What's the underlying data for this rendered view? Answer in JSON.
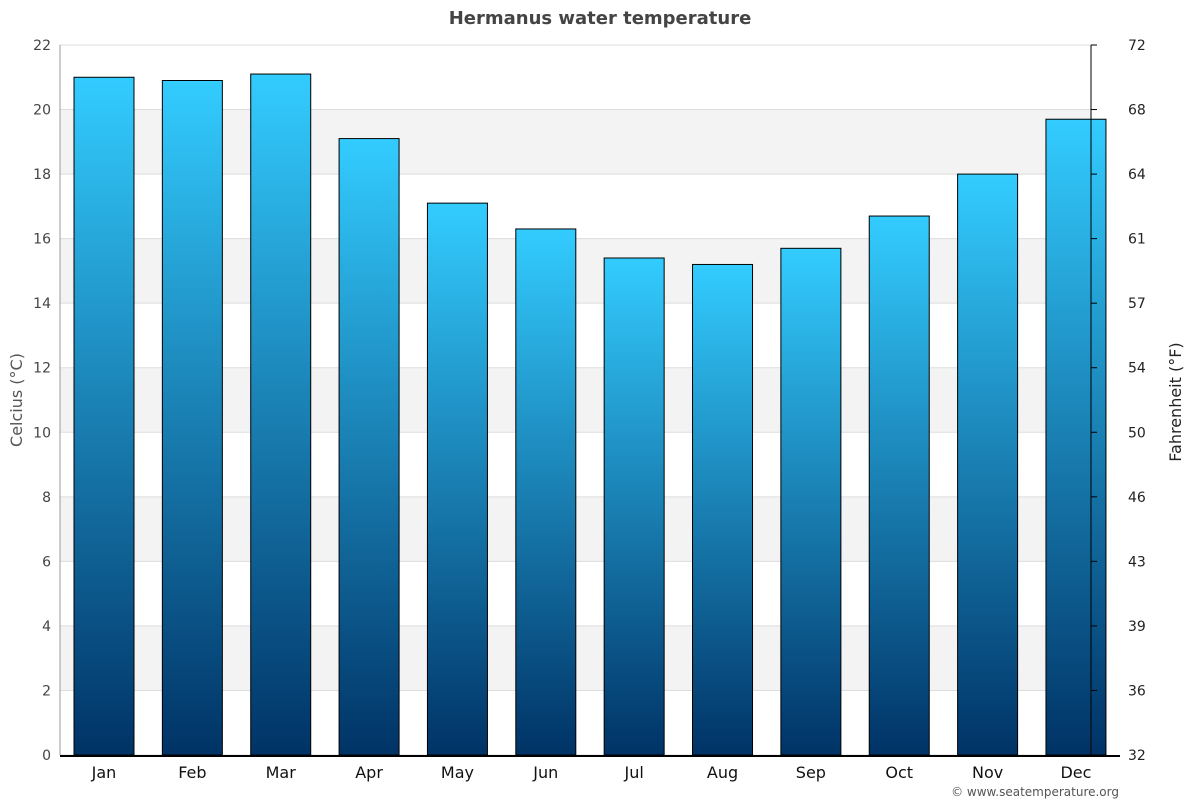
{
  "chart_data": {
    "type": "bar",
    "title": "Hermanus water temperature",
    "categories": [
      "Jan",
      "Feb",
      "Mar",
      "Apr",
      "May",
      "Jun",
      "Jul",
      "Aug",
      "Sep",
      "Oct",
      "Nov",
      "Dec"
    ],
    "values": [
      21.0,
      20.9,
      21.1,
      19.1,
      17.1,
      16.3,
      15.4,
      15.2,
      15.7,
      16.7,
      18.0,
      19.7
    ],
    "ylabel": "Celcius (°C)",
    "ylabel_right": "Fahrenheit (°F)",
    "ylim": [
      0,
      22
    ],
    "yticks": [
      "0",
      "2",
      "4",
      "6",
      "8",
      "10",
      "12",
      "14",
      "16",
      "18",
      "20",
      "22"
    ],
    "yticks_right": [
      "32",
      "36",
      "39",
      "43",
      "46",
      "50",
      "54",
      "57",
      "61",
      "64",
      "68",
      "72"
    ],
    "grid": true,
    "colors": {
      "bar_top": "#33ccff",
      "bar_bottom": "#003366",
      "band": "#f3f3f3"
    }
  },
  "credit": "© www.seatemperature.org"
}
